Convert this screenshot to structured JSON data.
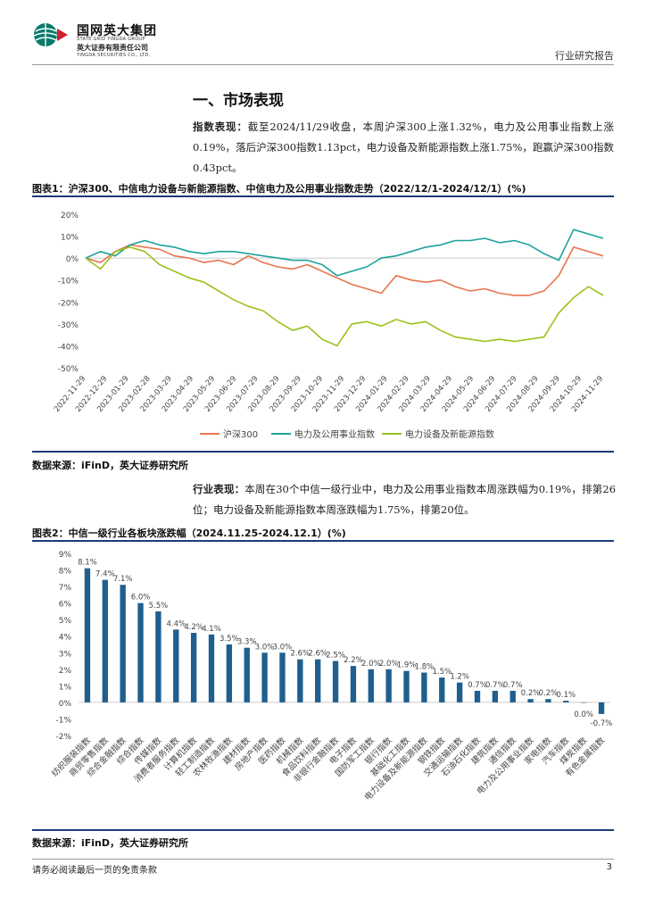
{
  "header": {
    "company_cn": "国网英大集团",
    "company_en": "STATE GRID YINGDA GROUP",
    "sub_cn": "英大证券有限责任公司",
    "sub_en": "YINGDA SECURITIES CO., LTD.",
    "doc_type": "行业研究报告"
  },
  "section": {
    "title": "一、市场表现"
  },
  "paragraphs": {
    "index_label": "指数表现：",
    "index_text": "截至2024/11/29收盘，本周沪深300上涨1.32%，电力及公用事业指数上涨0.19%，落后沪深300指数1.13pct，电力设备及新能源指数上涨1.75%，跑赢沪深300指数0.43pct。",
    "industry_label": "行业表现：",
    "industry_text": "本周在30个中信一级行业中，电力及公用事业指数本周涨跌幅为0.19%，排第26位；电力设备及新能源指数本周涨跌幅为1.75%，排第20位。"
  },
  "figure1": {
    "title": "图表1：沪深300、中信电力设备与新能源指数、中信电力及公用事业指数走势（2022/12/1-2024/12/1）(%)",
    "source": "数据来源：iFinD，英大证券研究所"
  },
  "figure2": {
    "title": "图表2：中信一级行业各板块涨跌幅（2024.11.25-2024.12.1）(%)",
    "source": "数据来源：iFinD，英大证券研究所"
  },
  "footer": {
    "disclaimer": "请务必阅读最后一页的免责条款",
    "page": "3"
  },
  "chart_data": [
    {
      "type": "line",
      "title": "沪深300、中信电力设备与新能源指数、中信电力及公用事业指数走势",
      "ylim": [
        -50,
        20
      ],
      "yticks": [
        "20%",
        "10%",
        "0%",
        "-10%",
        "-20%",
        "-30%",
        "-40%",
        "-50%"
      ],
      "ytick_values": [
        20,
        10,
        0,
        -10,
        -20,
        -30,
        -40,
        -50
      ],
      "x_ticks": [
        "2022-11-29",
        "2022-12-29",
        "2023-01-29",
        "2023-02-28",
        "2023-03-29",
        "2023-04-29",
        "2023-05-29",
        "2023-06-29",
        "2023-07-29",
        "2023-08-29",
        "2023-09-29",
        "2023-10-29",
        "2023-11-29",
        "2023-12-29",
        "2024-01-29",
        "2024-02-29",
        "2024-03-29",
        "2024-04-29",
        "2024-05-29",
        "2024-06-29",
        "2024-07-29",
        "2024-08-29",
        "2024-09-29",
        "2024-10-29",
        "2024-11-29"
      ],
      "legend_position": "bottom",
      "series": [
        {
          "name": "沪深300",
          "color": "#e8754f",
          "values": [
            0,
            -2,
            3,
            6,
            5,
            4,
            1,
            0,
            -2,
            -1,
            -3,
            1,
            -2,
            -4,
            -5,
            -3,
            -6,
            -9,
            -12,
            -14,
            -16,
            -8,
            -10,
            -11,
            -10,
            -13,
            -15,
            -14,
            -16,
            -17,
            -17,
            -15,
            -8,
            5,
            3,
            1
          ]
        },
        {
          "name": "电力及公用事业指数",
          "color": "#1aa39a",
          "values": [
            0,
            3,
            1,
            6,
            8,
            6,
            5,
            3,
            2,
            3,
            3,
            2,
            1,
            0,
            -1,
            -1,
            -3,
            -8,
            -6,
            -4,
            0,
            1,
            3,
            5,
            6,
            8,
            8,
            9,
            7,
            8,
            6,
            2,
            -1,
            13,
            11,
            9
          ]
        },
        {
          "name": "电力设备及新能源指数",
          "color": "#9ac21c",
          "values": [
            0,
            -5,
            3,
            5,
            3,
            -3,
            -6,
            -9,
            -11,
            -15,
            -19,
            -22,
            -24,
            -29,
            -33,
            -31,
            -37,
            -40,
            -30,
            -29,
            -31,
            -28,
            -30,
            -29,
            -33,
            -36,
            -37,
            -38,
            -37,
            -38,
            -37,
            -36,
            -25,
            -18,
            -13,
            -17
          ]
        }
      ]
    },
    {
      "type": "bar",
      "title": "中信一级行业各板块涨跌幅",
      "ylim": [
        -2,
        9
      ],
      "yticks": [
        "9%",
        "8%",
        "7%",
        "6%",
        "5%",
        "4%",
        "3%",
        "2%",
        "1%",
        "0%",
        "-1%",
        "-2%"
      ],
      "ytick_values": [
        9,
        8,
        7,
        6,
        5,
        4,
        3,
        2,
        1,
        0,
        -1,
        -2
      ],
      "bar_color": "#1f5f8f",
      "categories": [
        "纺织服装指数",
        "商贸零售指数",
        "综合金融指数",
        "综合指数",
        "传媒指数",
        "消费者服务指数",
        "计算机指数",
        "轻工制造指数",
        "农林牧渔指数",
        "建材指数",
        "房地产指数",
        "医药指数",
        "机械指数",
        "食品饮料指数",
        "非银行金融指数",
        "电子指数",
        "国防军工指数",
        "银行指数",
        "基础化工指数",
        "电力设备及新能源指数",
        "钢铁指数",
        "交通运输指数",
        "石油石化指数",
        "建筑指数",
        "通信指数",
        "电力及公用事业指数",
        "家电指数",
        "汽车指数",
        "煤炭指数",
        "有色金属指数"
      ],
      "values": [
        8.1,
        7.4,
        7.1,
        6.0,
        5.5,
        4.4,
        4.2,
        4.1,
        3.5,
        3.3,
        3.0,
        3.0,
        2.6,
        2.6,
        2.5,
        2.2,
        2.0,
        2.0,
        1.9,
        1.8,
        1.5,
        1.2,
        0.7,
        0.7,
        0.7,
        0.2,
        0.2,
        0.1,
        0.0,
        -0.7
      ],
      "labels": [
        "8.1%",
        "7.4%",
        "7.1%",
        "6.0%",
        "5.5%",
        "4.4%",
        "4.2%",
        "4.1%",
        "3.5%",
        "3.3%",
        "3.0%",
        "3.0%",
        "2.6%",
        "2.6%",
        "2.5%",
        "2.2%",
        "2.0%",
        "2.0%",
        "1.9%",
        "1.8%",
        "1.5%",
        "1.2%",
        "0.7%",
        "0.7%",
        "0.7%",
        "0.2%",
        "0.2%",
        "0.1%",
        "0.0%",
        "-0.7%"
      ]
    }
  ]
}
